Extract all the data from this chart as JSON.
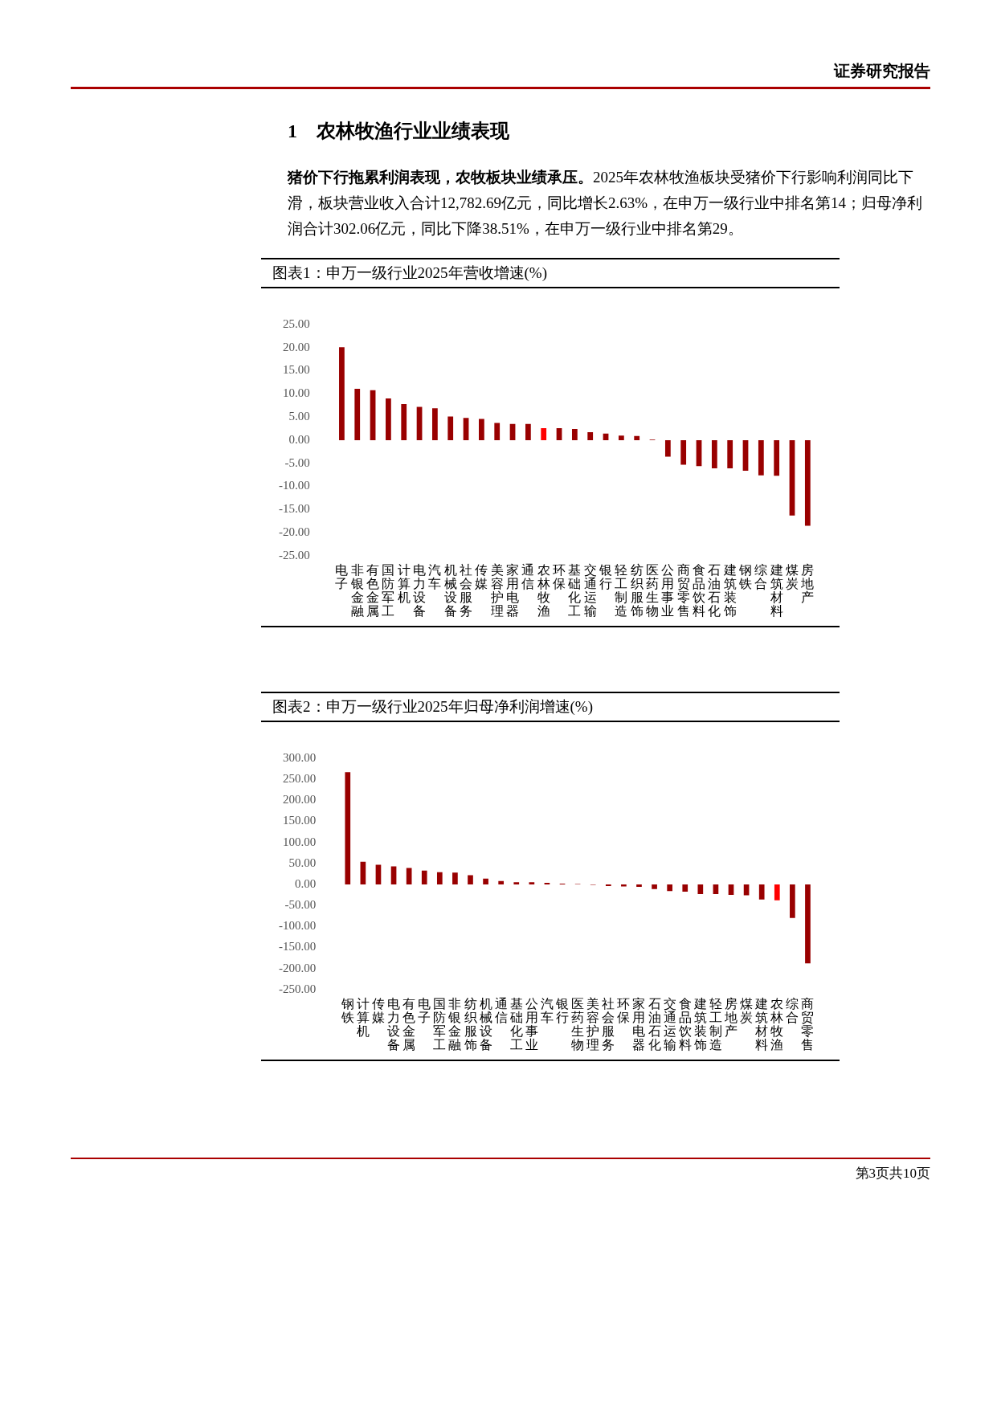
{
  "chart_data": [
    {
      "type": "bar",
      "title": "图表1：申万一级行业2025年营收增速(%)",
      "annotations": [
        "证券研究报告",
        "1　农林牧渔行业业绩表现",
        "猪价下行拖累利润表现，农牧板块业绩承压。",
        "2025年农林牧渔板块受猪价下行影响利润同比下滑，板块营业收入合计12,782.69亿元，同比增长2.63%，在申万一级行业中排名第14；归母净利润合计302.06亿元，同比下降38.51%，在申万一级行业中排名第29。"
      ],
      "categories": [
        "电子",
        "非银金融",
        "有色金属",
        "国防军工",
        "计算机",
        "电力设备",
        "汽车",
        "机械设备",
        "社会服务",
        "传媒",
        "美容护理",
        "家用电器",
        "通信",
        "农林牧渔",
        "环保",
        "基础化工",
        "交通运输",
        "银行",
        "轻工制造",
        "纺织服饰",
        "医药生物",
        "公用事业",
        "商贸零售",
        "食品饮料",
        "石油石化",
        "建筑装饰",
        "钢铁",
        "综合",
        "建筑材料",
        "煤炭",
        "房地产"
      ],
      "values": [
        20.1,
        11.1,
        10.8,
        9.0,
        7.8,
        7.2,
        6.9,
        5.1,
        4.8,
        4.6,
        3.7,
        3.5,
        3.5,
        2.6,
        2.6,
        2.4,
        1.7,
        1.4,
        1.0,
        0.9,
        0.1,
        -3.6,
        -5.3,
        -5.6,
        -6.1,
        -6.1,
        -6.6,
        -7.6,
        -7.7,
        -16.3,
        -18.5
      ],
      "colors": [
        "#990000",
        "#990000",
        "#990000",
        "#990000",
        "#990000",
        "#990000",
        "#990000",
        "#990000",
        "#990000",
        "#990000",
        "#990000",
        "#990000",
        "#990000",
        "#ff0000",
        "#990000",
        "#990000",
        "#990000",
        "#990000",
        "#990000",
        "#990000",
        "#990000",
        "#990000",
        "#990000",
        "#990000",
        "#990000",
        "#990000",
        "#990000",
        "#990000",
        "#990000",
        "#990000",
        "#990000"
      ],
      "ylim": [
        -25,
        25
      ],
      "yticks": [
        {
          "value": 25,
          "label": "25.00"
        },
        {
          "value": 20,
          "label": "20.00"
        },
        {
          "value": 15,
          "label": "15.00"
        },
        {
          "value": 10,
          "label": "10.00"
        },
        {
          "value": 5,
          "label": "5.00"
        },
        {
          "value": 0,
          "label": "0.00"
        },
        {
          "value": -5,
          "label": "-5.00"
        },
        {
          "value": -10,
          "label": "-10.00"
        },
        {
          "value": -15,
          "label": "-15.00"
        },
        {
          "value": -20,
          "label": "-20.00"
        },
        {
          "value": -25,
          "label": "-25.00"
        }
      ]
    },
    {
      "type": "bar",
      "title": "图表2：申万一级行业2025年归母净利润增速(%)",
      "annotations": [
        "第3页共10页"
      ],
      "categories": [
        "钢铁",
        "计算机",
        "传媒",
        "电力设备",
        "有色金属",
        "电子",
        "国防军工",
        "非银金融",
        "纺织服饰",
        "机械设备",
        "通信",
        "基础化工",
        "公用事业",
        "汽车",
        "银行",
        "医药生物",
        "美容护理",
        "社会服务",
        "环保",
        "家用电器",
        "石油石化",
        "交通运输",
        "食品饮料",
        "建筑装饰",
        "轻工制造",
        "房地产",
        "煤炭",
        "建筑材料",
        "农林牧渔",
        "综合",
        "商贸零售"
      ],
      "values": [
        267,
        54,
        47,
        43,
        39,
        33,
        29,
        28,
        22,
        14,
        8,
        5,
        5,
        4,
        2,
        1,
        -1,
        -4,
        -5,
        -6,
        -11,
        -16,
        -17,
        -23,
        -23,
        -25,
        -26,
        -36,
        -38,
        -80,
        -188
      ],
      "colors": [
        "#990000",
        "#990000",
        "#990000",
        "#990000",
        "#990000",
        "#990000",
        "#990000",
        "#990000",
        "#990000",
        "#990000",
        "#990000",
        "#990000",
        "#990000",
        "#990000",
        "#990000",
        "#990000",
        "#990000",
        "#990000",
        "#990000",
        "#990000",
        "#990000",
        "#990000",
        "#990000",
        "#990000",
        "#990000",
        "#990000",
        "#990000",
        "#990000",
        "#ff0000",
        "#990000",
        "#990000"
      ],
      "ylim": [
        -250,
        300
      ],
      "yticks": [
        {
          "value": 300,
          "label": "300.00"
        },
        {
          "value": 250,
          "label": "250.00"
        },
        {
          "value": 200,
          "label": "200.00"
        },
        {
          "value": 150,
          "label": "150.00"
        },
        {
          "value": 100,
          "label": "100.00"
        },
        {
          "value": 50,
          "label": "50.00"
        },
        {
          "value": 0,
          "label": "0.00"
        },
        {
          "value": -50,
          "label": "-50.00"
        },
        {
          "value": -100,
          "label": "-100.00"
        },
        {
          "value": -150,
          "label": "-150.00"
        },
        {
          "value": -200,
          "label": "-200.00"
        },
        {
          "value": -250,
          "label": "-250.00"
        }
      ]
    }
  ]
}
